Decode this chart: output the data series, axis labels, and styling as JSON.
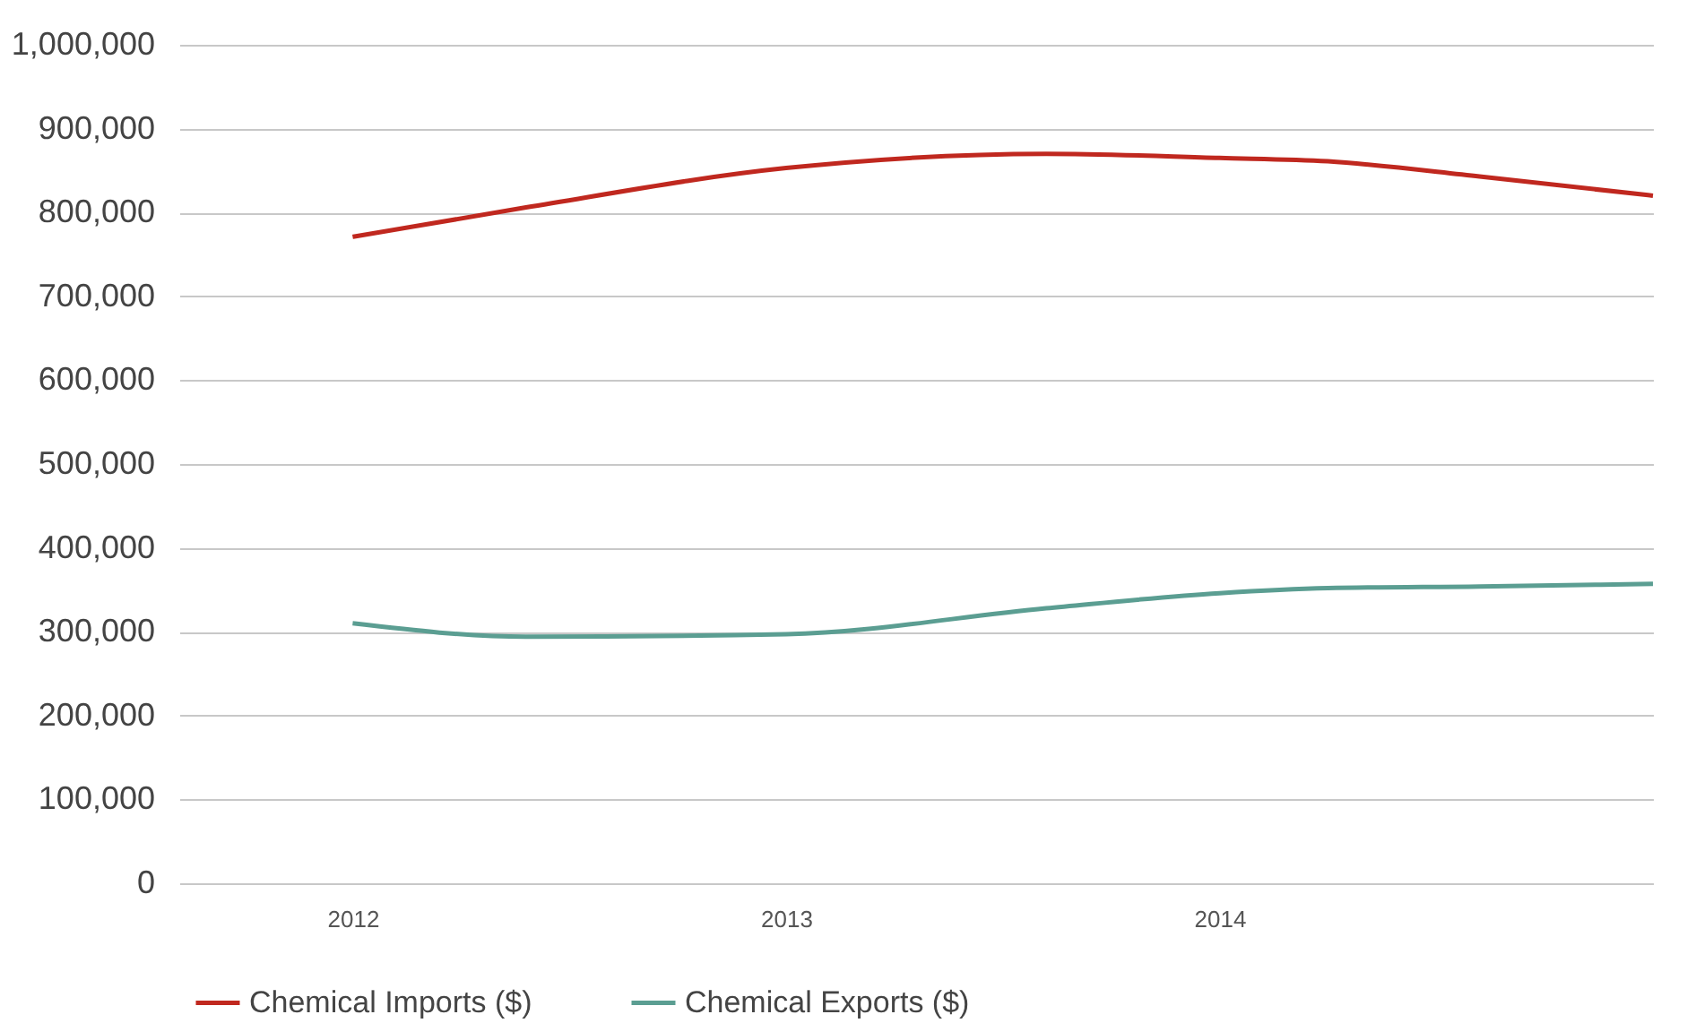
{
  "chart_data": {
    "type": "line",
    "x": [
      2012,
      2012.4,
      2013,
      2013.6,
      2014,
      2014.25,
      2014.6,
      2015
    ],
    "series": [
      {
        "name": "Chemical Imports ($)",
        "color": "#c0281f",
        "values": [
          771000,
          806000,
          853000,
          870000,
          865000,
          861000,
          843000,
          820000
        ]
      },
      {
        "name": "Chemical Exports ($)",
        "color": "#5b9e92",
        "values": [
          310000,
          294000,
          297000,
          328000,
          346000,
          352000,
          354000,
          357000
        ]
      }
    ],
    "xlim": [
      2011.6,
      2015
    ],
    "xticks": [
      2012,
      2013,
      2014
    ],
    "ylim": [
      0,
      1000000
    ],
    "yticks": [
      0,
      {
        "value": 100000,
        "label": "100,000"
      },
      {
        "value": 200000,
        "label": "200,000"
      },
      {
        "value": 300000,
        "label": "300,000"
      },
      {
        "value": 400000,
        "label": "400,000"
      },
      {
        "value": 500000,
        "label": "500,000"
      },
      {
        "value": 600000,
        "label": "600,000"
      },
      {
        "value": 700000,
        "label": "700,000"
      },
      {
        "value": 800000,
        "label": "800,000"
      },
      {
        "value": 900000,
        "label": "900,000"
      },
      {
        "value": 1000000,
        "label": "1,000,000"
      }
    ],
    "grid": "y",
    "legend": "bottom",
    "marker": "none",
    "line_style": "solid"
  }
}
